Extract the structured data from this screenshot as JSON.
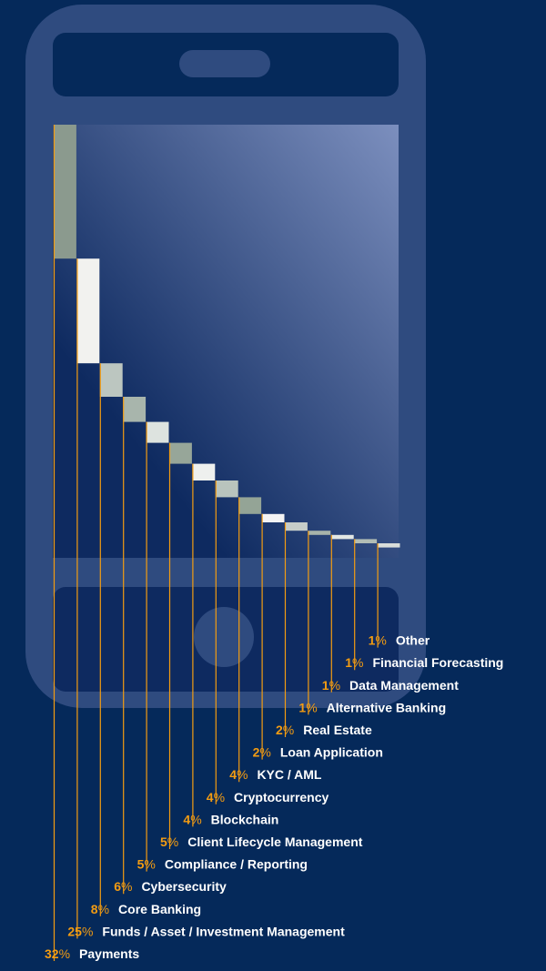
{
  "colors": {
    "background": "#05295a",
    "phone_body": "#2f4b7f",
    "screen_top": "#7c8fbe",
    "screen_bottom": "#0e2a60",
    "leader_line": "#f39c12",
    "percent_text": "#f39c12",
    "label_text": "#ffffff",
    "bar_colors": [
      "#8b9a8e",
      "#f2f2ef",
      "#bcc6c0",
      "#a8b5ac",
      "#dde3df",
      "#97a699",
      "#eef0ee",
      "#b9c4bd",
      "#94a496",
      "#f4f4f4",
      "#c6cdc9",
      "#a7b3aa",
      "#e3e7e4",
      "#b2bdb5",
      "#d9ddda"
    ]
  },
  "icons": {
    "device": "smartphone-icon",
    "home_button": "home-button-icon",
    "speaker": "speaker-slot-icon"
  },
  "chart_data": {
    "type": "bar",
    "categories": [
      "Payments",
      "Funds / Asset / Investment Management",
      "Core Banking",
      "Cybersecurity",
      "Compliance / Reporting",
      "Client Lifecycle Management",
      "Blockchain",
      "Cryptocurrency",
      "KYC / AML",
      "Loan Application",
      "Real Estate",
      "Alternative Banking",
      "Data Management",
      "Financial Forecasting",
      "Other"
    ],
    "values": [
      32,
      25,
      8,
      6,
      5,
      5,
      4,
      4,
      4,
      2,
      2,
      1,
      1,
      1,
      1
    ],
    "value_labels": [
      "32",
      "25",
      "8",
      "6",
      "5",
      "5",
      "4",
      "4",
      "4",
      "2",
      "2",
      "1",
      "1",
      "1",
      "1"
    ],
    "unit": "%",
    "grid": false,
    "legend": "none",
    "ylim": [
      0,
      32
    ]
  }
}
